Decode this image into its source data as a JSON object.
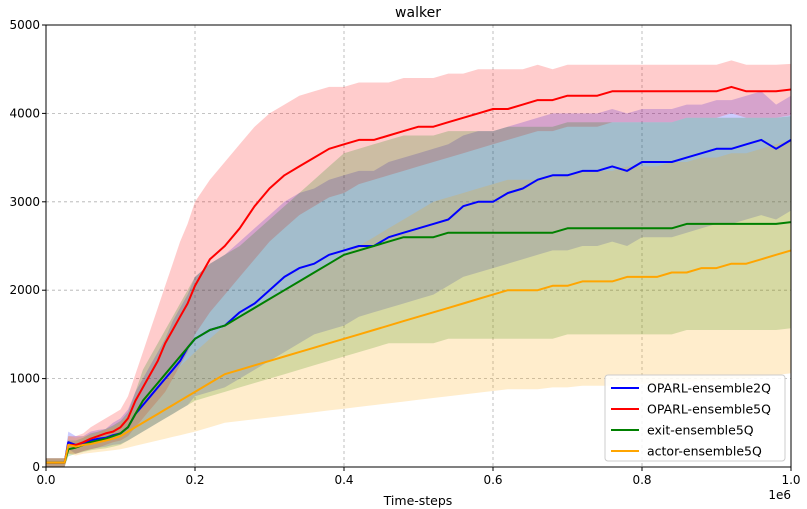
{
  "chart_data": {
    "type": "line",
    "title": "walker",
    "xlabel": "Time-steps",
    "ylabel": "",
    "x_offset_label": "1e6",
    "xlim": [
      0,
      1.0
    ],
    "ylim": [
      0,
      5000
    ],
    "xticks": [
      0.0,
      0.2,
      0.4,
      0.6,
      0.8,
      1.0
    ],
    "xtick_labels": [
      "0.0",
      "0.2",
      "0.4",
      "0.6",
      "0.8",
      "1.0"
    ],
    "yticks": [
      0,
      1000,
      2000,
      3000,
      4000,
      5000
    ],
    "ytick_labels": [
      "0",
      "1000",
      "2000",
      "3000",
      "4000",
      "5000"
    ],
    "grid": true,
    "legend_position": "lower-right",
    "x": [
      0.0,
      0.025,
      0.03,
      0.04,
      0.05,
      0.06,
      0.07,
      0.08,
      0.09,
      0.1,
      0.11,
      0.12,
      0.13,
      0.14,
      0.15,
      0.16,
      0.17,
      0.18,
      0.19,
      0.2,
      0.22,
      0.24,
      0.26,
      0.28,
      0.3,
      0.32,
      0.34,
      0.36,
      0.38,
      0.4,
      0.42,
      0.44,
      0.46,
      0.48,
      0.5,
      0.52,
      0.54,
      0.56,
      0.58,
      0.6,
      0.62,
      0.64,
      0.66,
      0.68,
      0.7,
      0.72,
      0.74,
      0.76,
      0.78,
      0.8,
      0.82,
      0.84,
      0.86,
      0.88,
      0.9,
      0.92,
      0.94,
      0.96,
      0.98,
      1.0
    ],
    "series": [
      {
        "name": "OPARL-ensemble2Q",
        "color": "#0000ff",
        "values": [
          50,
          50,
          280,
          250,
          260,
          300,
          320,
          330,
          360,
          380,
          450,
          600,
          700,
          800,
          900,
          1000,
          1100,
          1200,
          1350,
          1450,
          1550,
          1600,
          1750,
          1850,
          2000,
          2150,
          2250,
          2300,
          2400,
          2450,
          2500,
          2500,
          2600,
          2650,
          2700,
          2750,
          2800,
          2950,
          3000,
          3000,
          3100,
          3150,
          3250,
          3300,
          3300,
          3350,
          3350,
          3400,
          3350,
          3450,
          3450,
          3450,
          3500,
          3550,
          3600,
          3600,
          3650,
          3700,
          3600,
          3700
        ],
        "lower": [
          0,
          0,
          200,
          150,
          180,
          200,
          220,
          230,
          250,
          260,
          300,
          350,
          400,
          450,
          500,
          550,
          600,
          650,
          700,
          800,
          850,
          900,
          1000,
          1100,
          1200,
          1300,
          1400,
          1500,
          1550,
          1600,
          1700,
          1750,
          1800,
          1850,
          1900,
          1950,
          2050,
          2150,
          2200,
          2250,
          2300,
          2350,
          2400,
          2450,
          2450,
          2500,
          2500,
          2550,
          2500,
          2600,
          2600,
          2600,
          2650,
          2700,
          2750,
          2750,
          2800,
          2850,
          2800,
          2900
        ],
        "upper": [
          100,
          100,
          400,
          350,
          350,
          400,
          420,
          430,
          500,
          550,
          650,
          850,
          1000,
          1150,
          1300,
          1450,
          1650,
          1800,
          1950,
          2150,
          2300,
          2400,
          2550,
          2700,
          2850,
          3000,
          3100,
          3150,
          3250,
          3300,
          3350,
          3350,
          3450,
          3500,
          3550,
          3600,
          3650,
          3750,
          3800,
          3800,
          3850,
          3900,
          3950,
          4000,
          4000,
          4000,
          4000,
          4050,
          4000,
          4050,
          4050,
          4050,
          4100,
          4100,
          4150,
          4150,
          4200,
          4250,
          4100,
          4200
        ]
      },
      {
        "name": "OPARL-ensemble5Q",
        "color": "#ff0000",
        "values": [
          50,
          50,
          250,
          250,
          280,
          320,
          350,
          380,
          400,
          450,
          550,
          750,
          900,
          1050,
          1200,
          1400,
          1550,
          1700,
          1850,
          2050,
          2350,
          2500,
          2700,
          2950,
          3150,
          3300,
          3400,
          3500,
          3600,
          3650,
          3700,
          3700,
          3750,
          3800,
          3850,
          3850,
          3900,
          3950,
          4000,
          4050,
          4050,
          4100,
          4150,
          4150,
          4200,
          4200,
          4200,
          4250,
          4250,
          4250,
          4250,
          4250,
          4250,
          4250,
          4250,
          4300,
          4250,
          4250,
          4250,
          4270
        ],
        "lower": [
          0,
          0,
          150,
          150,
          180,
          200,
          220,
          250,
          280,
          300,
          350,
          450,
          550,
          650,
          750,
          850,
          1000,
          1150,
          1300,
          1500,
          1750,
          1950,
          2150,
          2350,
          2550,
          2700,
          2850,
          2950,
          3050,
          3100,
          3200,
          3250,
          3300,
          3350,
          3400,
          3450,
          3500,
          3550,
          3600,
          3650,
          3700,
          3750,
          3800,
          3800,
          3850,
          3850,
          3850,
          3900,
          3900,
          3900,
          3900,
          3900,
          3950,
          3950,
          3950,
          4000,
          3950,
          3950,
          3950,
          3980
        ],
        "upper": [
          100,
          100,
          350,
          350,
          380,
          450,
          500,
          550,
          600,
          650,
          800,
          1050,
          1300,
          1550,
          1800,
          2050,
          2300,
          2550,
          2750,
          3000,
          3250,
          3450,
          3650,
          3850,
          4000,
          4100,
          4200,
          4250,
          4300,
          4300,
          4350,
          4350,
          4350,
          4400,
          4400,
          4400,
          4450,
          4450,
          4500,
          4500,
          4500,
          4500,
          4550,
          4500,
          4550,
          4550,
          4550,
          4550,
          4550,
          4550,
          4550,
          4550,
          4550,
          4550,
          4550,
          4600,
          4550,
          4550,
          4550,
          4560
        ]
      },
      {
        "name": "exit-ensemble5Q",
        "color": "#008000",
        "values": [
          50,
          50,
          200,
          220,
          250,
          280,
          300,
          320,
          350,
          380,
          450,
          600,
          750,
          850,
          950,
          1050,
          1150,
          1250,
          1350,
          1450,
          1550,
          1600,
          1700,
          1800,
          1900,
          2000,
          2100,
          2200,
          2300,
          2400,
          2450,
          2500,
          2550,
          2600,
          2600,
          2600,
          2650,
          2650,
          2650,
          2650,
          2650,
          2650,
          2650,
          2650,
          2700,
          2700,
          2700,
          2700,
          2700,
          2700,
          2700,
          2700,
          2750,
          2750,
          2750,
          2750,
          2750,
          2750,
          2750,
          2770
        ],
        "lower": [
          0,
          0,
          120,
          150,
          170,
          190,
          200,
          210,
          230,
          250,
          300,
          350,
          400,
          450,
          500,
          550,
          600,
          650,
          700,
          750,
          800,
          850,
          900,
          950,
          1000,
          1050,
          1100,
          1150,
          1200,
          1250,
          1300,
          1350,
          1400,
          1400,
          1400,
          1400,
          1450,
          1450,
          1450,
          1450,
          1450,
          1450,
          1450,
          1450,
          1500,
          1500,
          1500,
          1500,
          1500,
          1500,
          1500,
          1500,
          1550,
          1550,
          1550,
          1550,
          1550,
          1550,
          1550,
          1570
        ],
        "upper": [
          100,
          100,
          300,
          300,
          330,
          380,
          400,
          430,
          470,
          520,
          620,
          850,
          1100,
          1250,
          1400,
          1550,
          1700,
          1850,
          2000,
          2150,
          2300,
          2400,
          2500,
          2650,
          2800,
          2950,
          3100,
          3250,
          3400,
          3550,
          3600,
          3650,
          3700,
          3750,
          3750,
          3750,
          3800,
          3800,
          3800,
          3800,
          3850,
          3850,
          3850,
          3850,
          3900,
          3900,
          3900,
          3900,
          3900,
          3900,
          3900,
          3900,
          3950,
          3950,
          3950,
          3950,
          3950,
          3950,
          3950,
          3970
        ]
      },
      {
        "name": "actor-ensemble5Q",
        "color": "#ffa500",
        "values": [
          50,
          50,
          250,
          230,
          250,
          260,
          280,
          300,
          320,
          350,
          400,
          450,
          500,
          550,
          600,
          650,
          700,
          750,
          800,
          850,
          950,
          1050,
          1100,
          1150,
          1200,
          1250,
          1300,
          1350,
          1400,
          1450,
          1500,
          1550,
          1600,
          1650,
          1700,
          1750,
          1800,
          1850,
          1900,
          1950,
          2000,
          2000,
          2000,
          2050,
          2050,
          2100,
          2100,
          2100,
          2150,
          2150,
          2150,
          2200,
          2200,
          2250,
          2250,
          2300,
          2300,
          2350,
          2400,
          2450
        ],
        "lower": [
          0,
          0,
          150,
          130,
          150,
          160,
          170,
          180,
          190,
          200,
          220,
          240,
          260,
          280,
          300,
          320,
          340,
          360,
          380,
          400,
          450,
          500,
          520,
          540,
          560,
          580,
          600,
          620,
          640,
          660,
          680,
          700,
          720,
          740,
          760,
          780,
          800,
          820,
          840,
          860,
          880,
          880,
          880,
          900,
          900,
          920,
          920,
          920,
          940,
          940,
          940,
          960,
          960,
          980,
          980,
          1000,
          1000,
          1020,
          1040,
          1060
        ],
        "upper": [
          100,
          100,
          350,
          330,
          350,
          360,
          390,
          420,
          450,
          500,
          580,
          660,
          740,
          820,
          900,
          980,
          1060,
          1140,
          1220,
          1300,
          1450,
          1600,
          1700,
          1800,
          1900,
          2000,
          2100,
          2200,
          2300,
          2400,
          2500,
          2600,
          2700,
          2800,
          2900,
          3000,
          3050,
          3100,
          3150,
          3200,
          3250,
          3250,
          3250,
          3300,
          3300,
          3350,
          3350,
          3350,
          3400,
          3400,
          3400,
          3450,
          3450,
          3500,
          3500,
          3550,
          3550,
          3600,
          3650,
          3700
        ]
      }
    ]
  }
}
